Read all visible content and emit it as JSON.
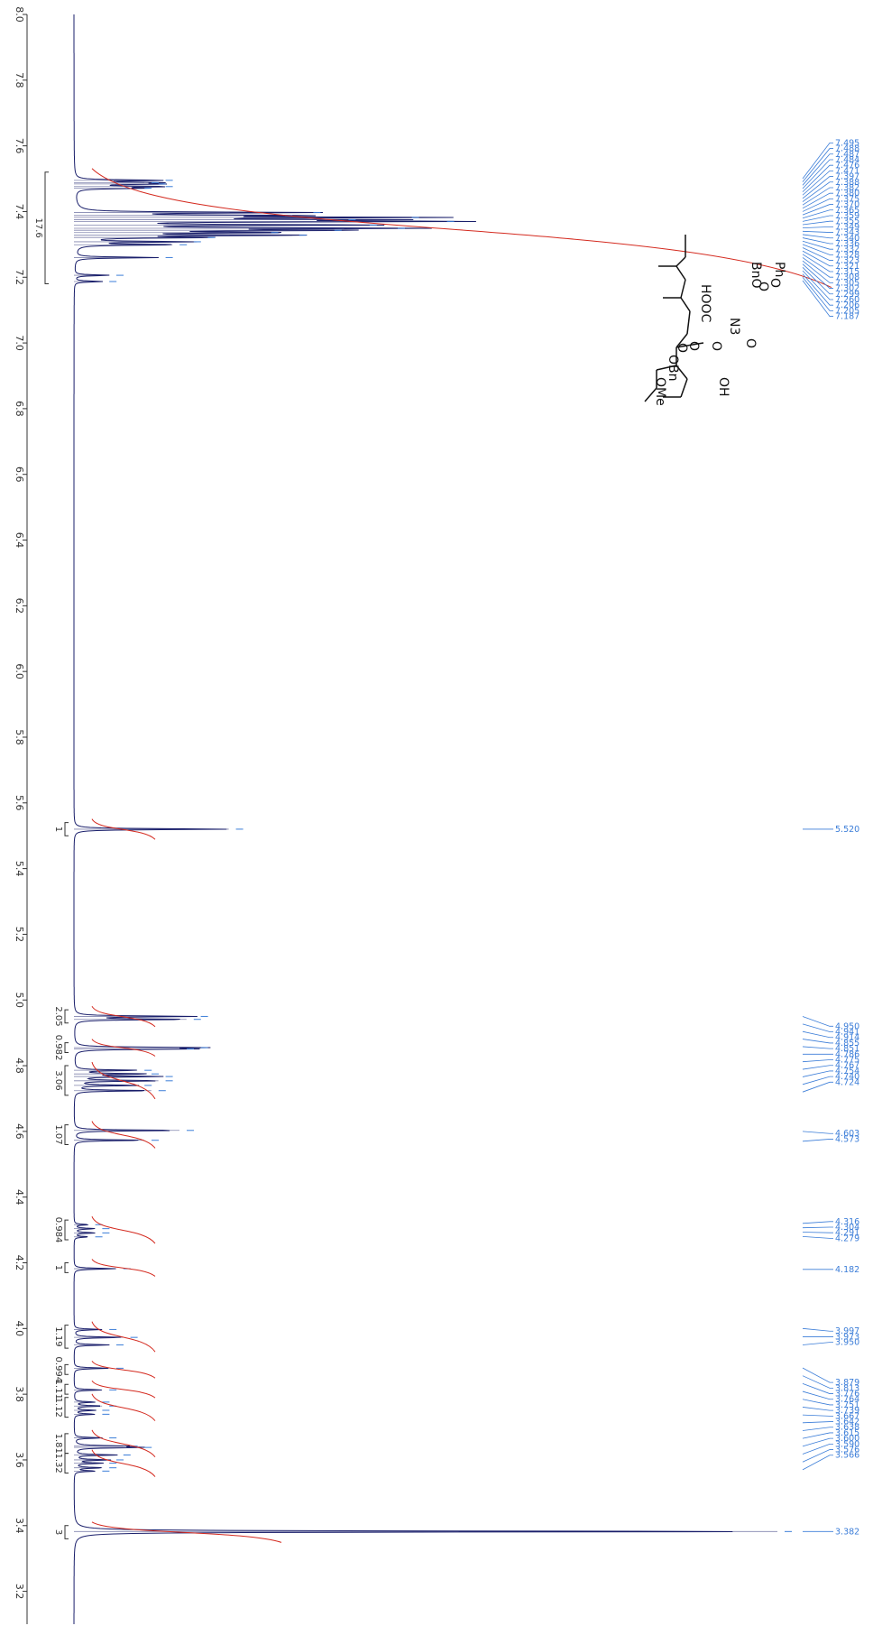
{
  "chart_data": {
    "type": "line",
    "title": "",
    "xlabel": "",
    "ylabel": "",
    "orientation": "rotated-90",
    "x_range_ppm": [
      8.0,
      3.1
    ],
    "ticks": [
      "8.0",
      "7.8",
      "7.6",
      "7.4",
      "7.2",
      "7.0",
      "6.8",
      "6.6",
      "6.4",
      "6.2",
      "6.0",
      "5.8",
      "5.6",
      "5.4",
      "5.2",
      "5.0",
      "4.8",
      "4.6",
      "4.4",
      "4.2",
      "4.0",
      "3.8",
      "3.6",
      "3.4",
      "3.2"
    ],
    "colors": {
      "spectrum": "#1a1f6b",
      "integral": "#d42a1f",
      "peak_label": "#3b7dd8",
      "axis": "#333333"
    },
    "peaks": [
      {
        "ppm": 7.495,
        "height": 0.12
      },
      {
        "ppm": 7.488,
        "height": 0.1
      },
      {
        "ppm": 7.484,
        "height": 0.11
      },
      {
        "ppm": 7.476,
        "height": 0.12
      },
      {
        "ppm": 7.471,
        "height": 0.09
      },
      {
        "ppm": 7.397,
        "height": 0.33
      },
      {
        "ppm": 7.388,
        "height": 0.29
      },
      {
        "ppm": 7.382,
        "height": 0.47
      },
      {
        "ppm": 7.375,
        "height": 0.38
      },
      {
        "ppm": 7.37,
        "height": 0.52
      },
      {
        "ppm": 7.359,
        "height": 0.41
      },
      {
        "ppm": 7.349,
        "height": 0.45
      },
      {
        "ppm": 7.343,
        "height": 0.36
      },
      {
        "ppm": 7.336,
        "height": 0.27
      },
      {
        "ppm": 7.328,
        "height": 0.31
      },
      {
        "ppm": 7.321,
        "height": 0.18
      },
      {
        "ppm": 7.308,
        "height": 0.16
      },
      {
        "ppm": 7.299,
        "height": 0.14
      },
      {
        "ppm": 7.26,
        "height": 0.12
      },
      {
        "ppm": 7.206,
        "height": 0.05
      },
      {
        "ppm": 7.187,
        "height": 0.04
      },
      {
        "ppm": 5.52,
        "height": 0.22
      },
      {
        "ppm": 4.95,
        "height": 0.17
      },
      {
        "ppm": 4.941,
        "height": 0.16
      },
      {
        "ppm": 4.855,
        "height": 0.17
      },
      {
        "ppm": 4.851,
        "height": 0.15
      },
      {
        "ppm": 4.786,
        "height": 0.09
      },
      {
        "ppm": 4.775,
        "height": 0.1
      },
      {
        "ppm": 4.767,
        "height": 0.12
      },
      {
        "ppm": 4.754,
        "height": 0.12
      },
      {
        "ppm": 4.74,
        "height": 0.09
      },
      {
        "ppm": 4.724,
        "height": 0.11
      },
      {
        "ppm": 4.603,
        "height": 0.15
      },
      {
        "ppm": 4.573,
        "height": 0.1
      },
      {
        "ppm": 4.316,
        "height": 0.02
      },
      {
        "ppm": 4.304,
        "height": 0.03
      },
      {
        "ppm": 4.291,
        "height": 0.03
      },
      {
        "ppm": 4.279,
        "height": 0.02
      },
      {
        "ppm": 4.182,
        "height": 0.06
      },
      {
        "ppm": 3.997,
        "height": 0.04
      },
      {
        "ppm": 3.973,
        "height": 0.07
      },
      {
        "ppm": 3.95,
        "height": 0.05
      },
      {
        "ppm": 3.879,
        "height": 0.05
      },
      {
        "ppm": 3.813,
        "height": 0.04
      },
      {
        "ppm": 3.776,
        "height": 0.03
      },
      {
        "ppm": 3.764,
        "height": 0.04
      },
      {
        "ppm": 3.751,
        "height": 0.03
      },
      {
        "ppm": 3.739,
        "height": 0.03
      },
      {
        "ppm": 3.667,
        "height": 0.04
      },
      {
        "ppm": 3.642,
        "height": 0.07
      },
      {
        "ppm": 3.638,
        "height": 0.09
      },
      {
        "ppm": 3.615,
        "height": 0.06
      },
      {
        "ppm": 3.6,
        "height": 0.05
      },
      {
        "ppm": 3.59,
        "height": 0.04
      },
      {
        "ppm": 3.576,
        "height": 0.04
      },
      {
        "ppm": 3.566,
        "height": 0.03
      },
      {
        "ppm": 3.382,
        "height": 1.0
      }
    ],
    "peak_label_groups": [
      {
        "labels": [
          "7.495",
          "7.488",
          "7.487",
          "7.484",
          "7.476",
          "7.471",
          "7.397",
          "7.388",
          "7.382",
          "7.380",
          "7.375",
          "7.370",
          "7.365",
          "7.359",
          "7.355",
          "7.349",
          "7.343",
          "7.340",
          "7.336",
          "7.332",
          "7.328",
          "7.323",
          "7.321",
          "7.315",
          "7.308",
          "7.305",
          "7.302",
          "7.299",
          "7.260",
          "7.206",
          "7.205",
          "7.187"
        ],
        "from": 7.5,
        "to": 7.19
      },
      {
        "labels": [
          "5.520"
        ],
        "from": 5.52,
        "to": 5.52
      },
      {
        "labels": [
          "4.950",
          "4.941",
          "4.914",
          "4.855",
          "4.851",
          "4.786",
          "4.775",
          "4.767",
          "4.754",
          "4.740",
          "4.724"
        ],
        "from": 4.95,
        "to": 4.72
      },
      {
        "labels": [
          "4.603",
          "4.573"
        ],
        "from": 4.6,
        "to": 4.57
      },
      {
        "labels": [
          "4.316",
          "4.304",
          "4.291",
          "4.279"
        ],
        "from": 4.32,
        "to": 4.28
      },
      {
        "labels": [
          "4.182"
        ],
        "from": 4.18,
        "to": 4.18
      },
      {
        "labels": [
          "3.997",
          "3.973",
          "3.950"
        ],
        "from": 4.0,
        "to": 3.95
      },
      {
        "labels": [
          "3.879",
          "3.813",
          "3.776",
          "3.764",
          "3.751",
          "3.739",
          "3.667",
          "3.642",
          "3.638",
          "3.615",
          "3.600",
          "3.590",
          "3.576",
          "3.566"
        ],
        "from": 3.88,
        "to": 3.57
      },
      {
        "labels": [
          "3.382"
        ],
        "from": 3.382,
        "to": 3.382
      }
    ],
    "integrals": [
      {
        "value": "17.6",
        "from": 7.52,
        "to": 7.18
      },
      {
        "value": "1",
        "from": 5.54,
        "to": 5.5
      },
      {
        "value": "2.05",
        "from": 4.97,
        "to": 4.93
      },
      {
        "value": "0.982",
        "from": 4.87,
        "to": 4.84
      },
      {
        "value": "3.06",
        "from": 4.8,
        "to": 4.71
      },
      {
        "value": "1.07",
        "from": 4.62,
        "to": 4.56
      },
      {
        "value": "0.984",
        "from": 4.33,
        "to": 4.27
      },
      {
        "value": "1",
        "from": 4.2,
        "to": 4.17
      },
      {
        "value": "1.19",
        "from": 4.01,
        "to": 3.94
      },
      {
        "value": "0.994",
        "from": 3.89,
        "to": 3.86
      },
      {
        "value": "1.11",
        "from": 3.83,
        "to": 3.8
      },
      {
        "value": "1.12",
        "from": 3.79,
        "to": 3.73
      },
      {
        "value": "1.81",
        "from": 3.68,
        "to": 3.62
      },
      {
        "value": "1.32",
        "from": 3.62,
        "to": 3.56
      },
      {
        "value": "3",
        "from": 3.4,
        "to": 3.36
      }
    ]
  },
  "structure": {
    "labels": [
      "Ph",
      "O",
      "O",
      "BnO",
      "N3",
      "O",
      "O",
      "HOOC",
      "O",
      "OH",
      "OBn",
      "O",
      "OMe"
    ]
  }
}
